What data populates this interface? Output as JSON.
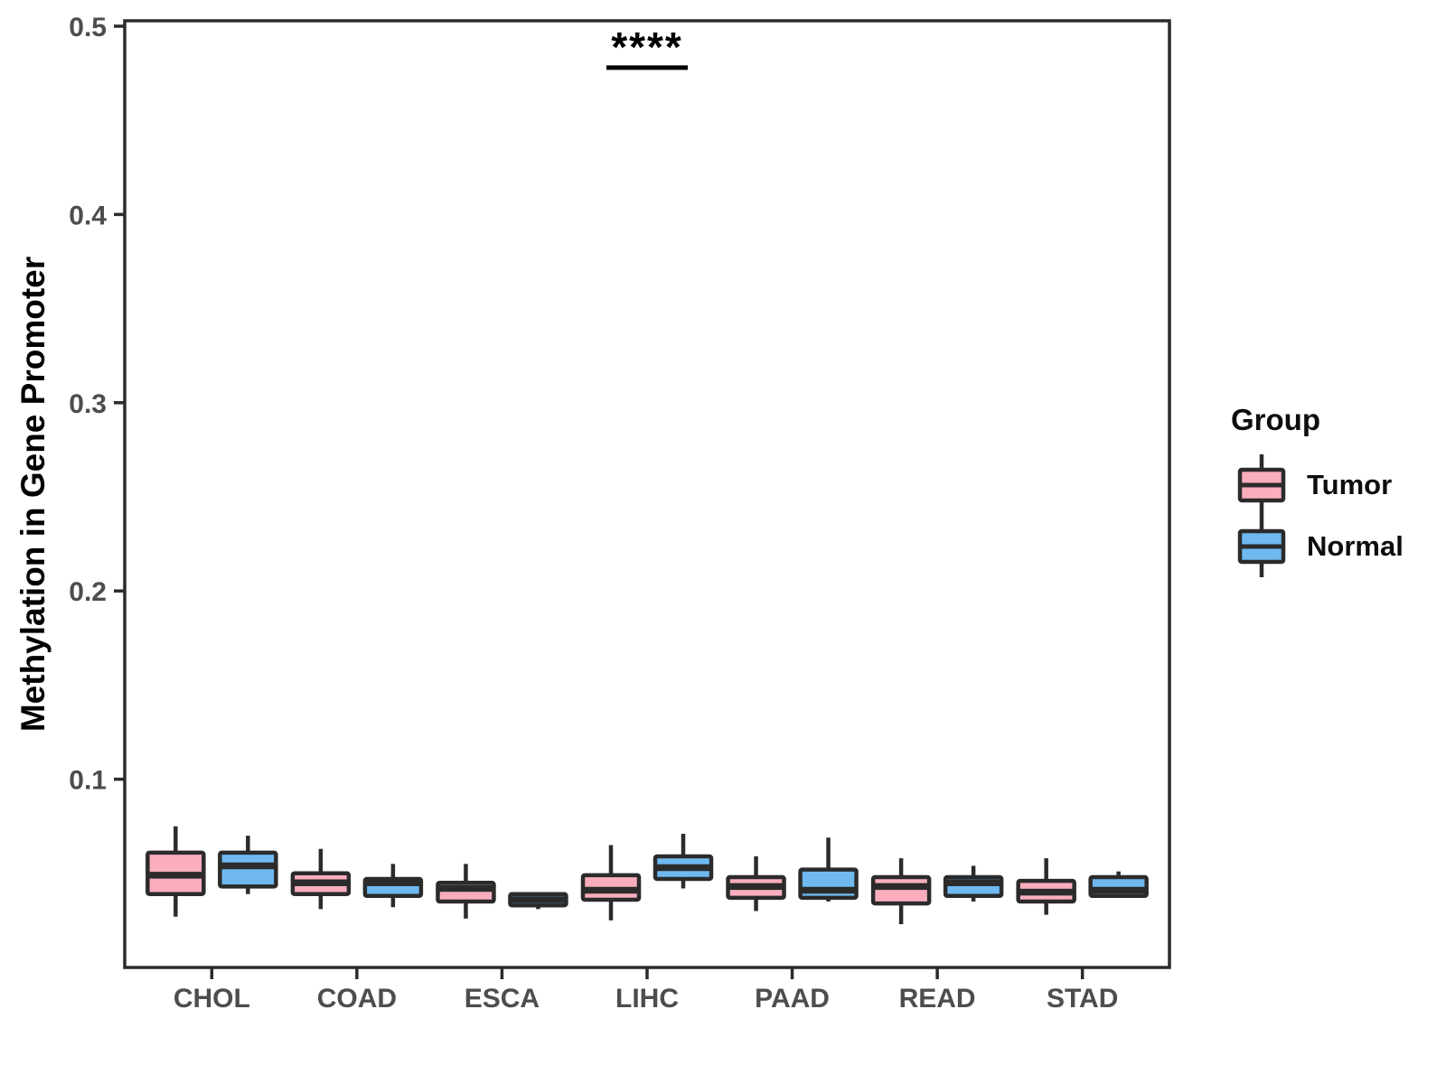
{
  "legend": {
    "title": "Group",
    "items": [
      {
        "label": "Tumor",
        "color": "#FAAEBD"
      },
      {
        "label": "Normal",
        "color": "#6FB9F0"
      }
    ]
  },
  "chart_data": {
    "type": "boxplot",
    "title": "",
    "xlabel": "",
    "ylabel": "Methylation in Gene Promoter",
    "ylim": [
      0,
      0.5
    ],
    "grid": false,
    "legend_position": "right",
    "y_tick_labels": [
      "0.1",
      "0.2",
      "0.3",
      "0.4",
      "0.5"
    ],
    "y_tick_values": [
      0.1,
      0.2,
      0.3,
      0.4,
      0.5
    ],
    "categories": [
      "CHOL",
      "COAD",
      "ESCA",
      "LIHC",
      "PAAD",
      "READ",
      "STAD"
    ],
    "series": [
      {
        "name": "Tumor",
        "color": "#FAAEBD",
        "boxes": [
          {
            "min": 0.027,
            "q1": 0.039,
            "median": 0.049,
            "q3": 0.061,
            "max": 0.075
          },
          {
            "min": 0.031,
            "q1": 0.039,
            "median": 0.045,
            "q3": 0.05,
            "max": 0.063
          },
          {
            "min": 0.026,
            "q1": 0.035,
            "median": 0.042,
            "q3": 0.045,
            "max": 0.055
          },
          {
            "min": 0.025,
            "q1": 0.036,
            "median": 0.041,
            "q3": 0.049,
            "max": 0.065
          },
          {
            "min": 0.03,
            "q1": 0.037,
            "median": 0.043,
            "q3": 0.048,
            "max": 0.059
          },
          {
            "min": 0.023,
            "q1": 0.034,
            "median": 0.043,
            "q3": 0.048,
            "max": 0.058
          },
          {
            "min": 0.028,
            "q1": 0.035,
            "median": 0.04,
            "q3": 0.046,
            "max": 0.058
          }
        ]
      },
      {
        "name": "Normal",
        "color": "#6FB9F0",
        "boxes": [
          {
            "min": 0.039,
            "q1": 0.043,
            "median": 0.054,
            "q3": 0.061,
            "max": 0.07
          },
          {
            "min": 0.032,
            "q1": 0.038,
            "median": 0.045,
            "q3": 0.047,
            "max": 0.055
          },
          {
            "min": 0.031,
            "q1": 0.033,
            "median": 0.036,
            "q3": 0.039,
            "max": 0.04
          },
          {
            "min": 0.042,
            "q1": 0.047,
            "median": 0.053,
            "q3": 0.059,
            "max": 0.071
          },
          {
            "min": 0.035,
            "q1": 0.037,
            "median": 0.041,
            "q3": 0.052,
            "max": 0.069
          },
          {
            "min": 0.035,
            "q1": 0.038,
            "median": 0.045,
            "q3": 0.048,
            "max": 0.054
          },
          {
            "min": 0.037,
            "q1": 0.038,
            "median": 0.041,
            "q3": 0.048,
            "max": 0.051
          }
        ]
      }
    ],
    "significance": {
      "label": "****",
      "category": "LIHC",
      "line_y": 0.478
    },
    "colors": {
      "box_stroke": "#2b2b2b",
      "panel_border": "#2b2b2b",
      "tick_label": "#4d4d4d",
      "annotation": "#000000"
    }
  }
}
